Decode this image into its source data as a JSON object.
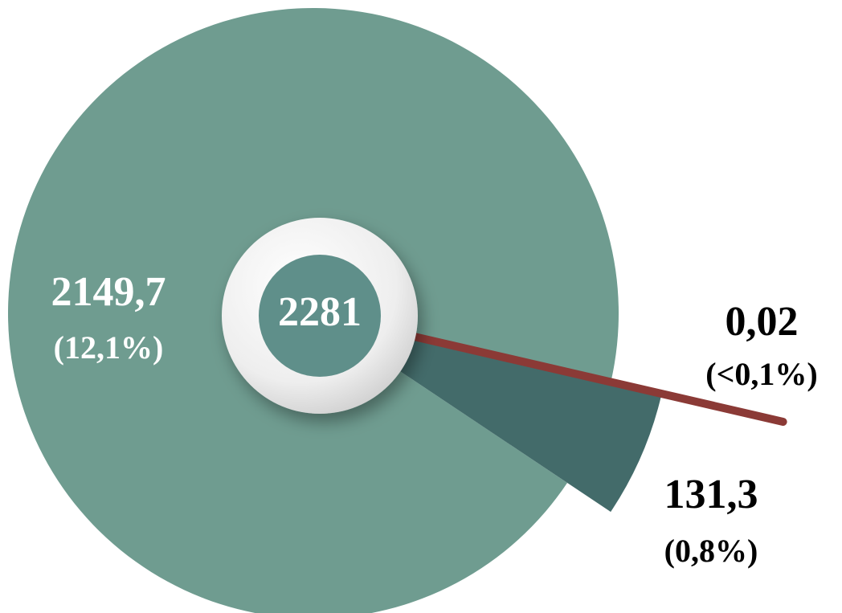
{
  "chart_data": {
    "type": "pie",
    "total": 2281,
    "categories": [
      null,
      null,
      null
    ],
    "values": [
      0.02,
      131.3,
      2149.7
    ],
    "value_labels": [
      "0,02",
      "131,3",
      "2149,7"
    ],
    "percent_labels": [
      "(<0,1%)",
      "(0,8%)",
      "(12,1%)"
    ],
    "colors": [
      "#8b3a36",
      "#436b6a",
      "#6f9c90"
    ]
  }
}
